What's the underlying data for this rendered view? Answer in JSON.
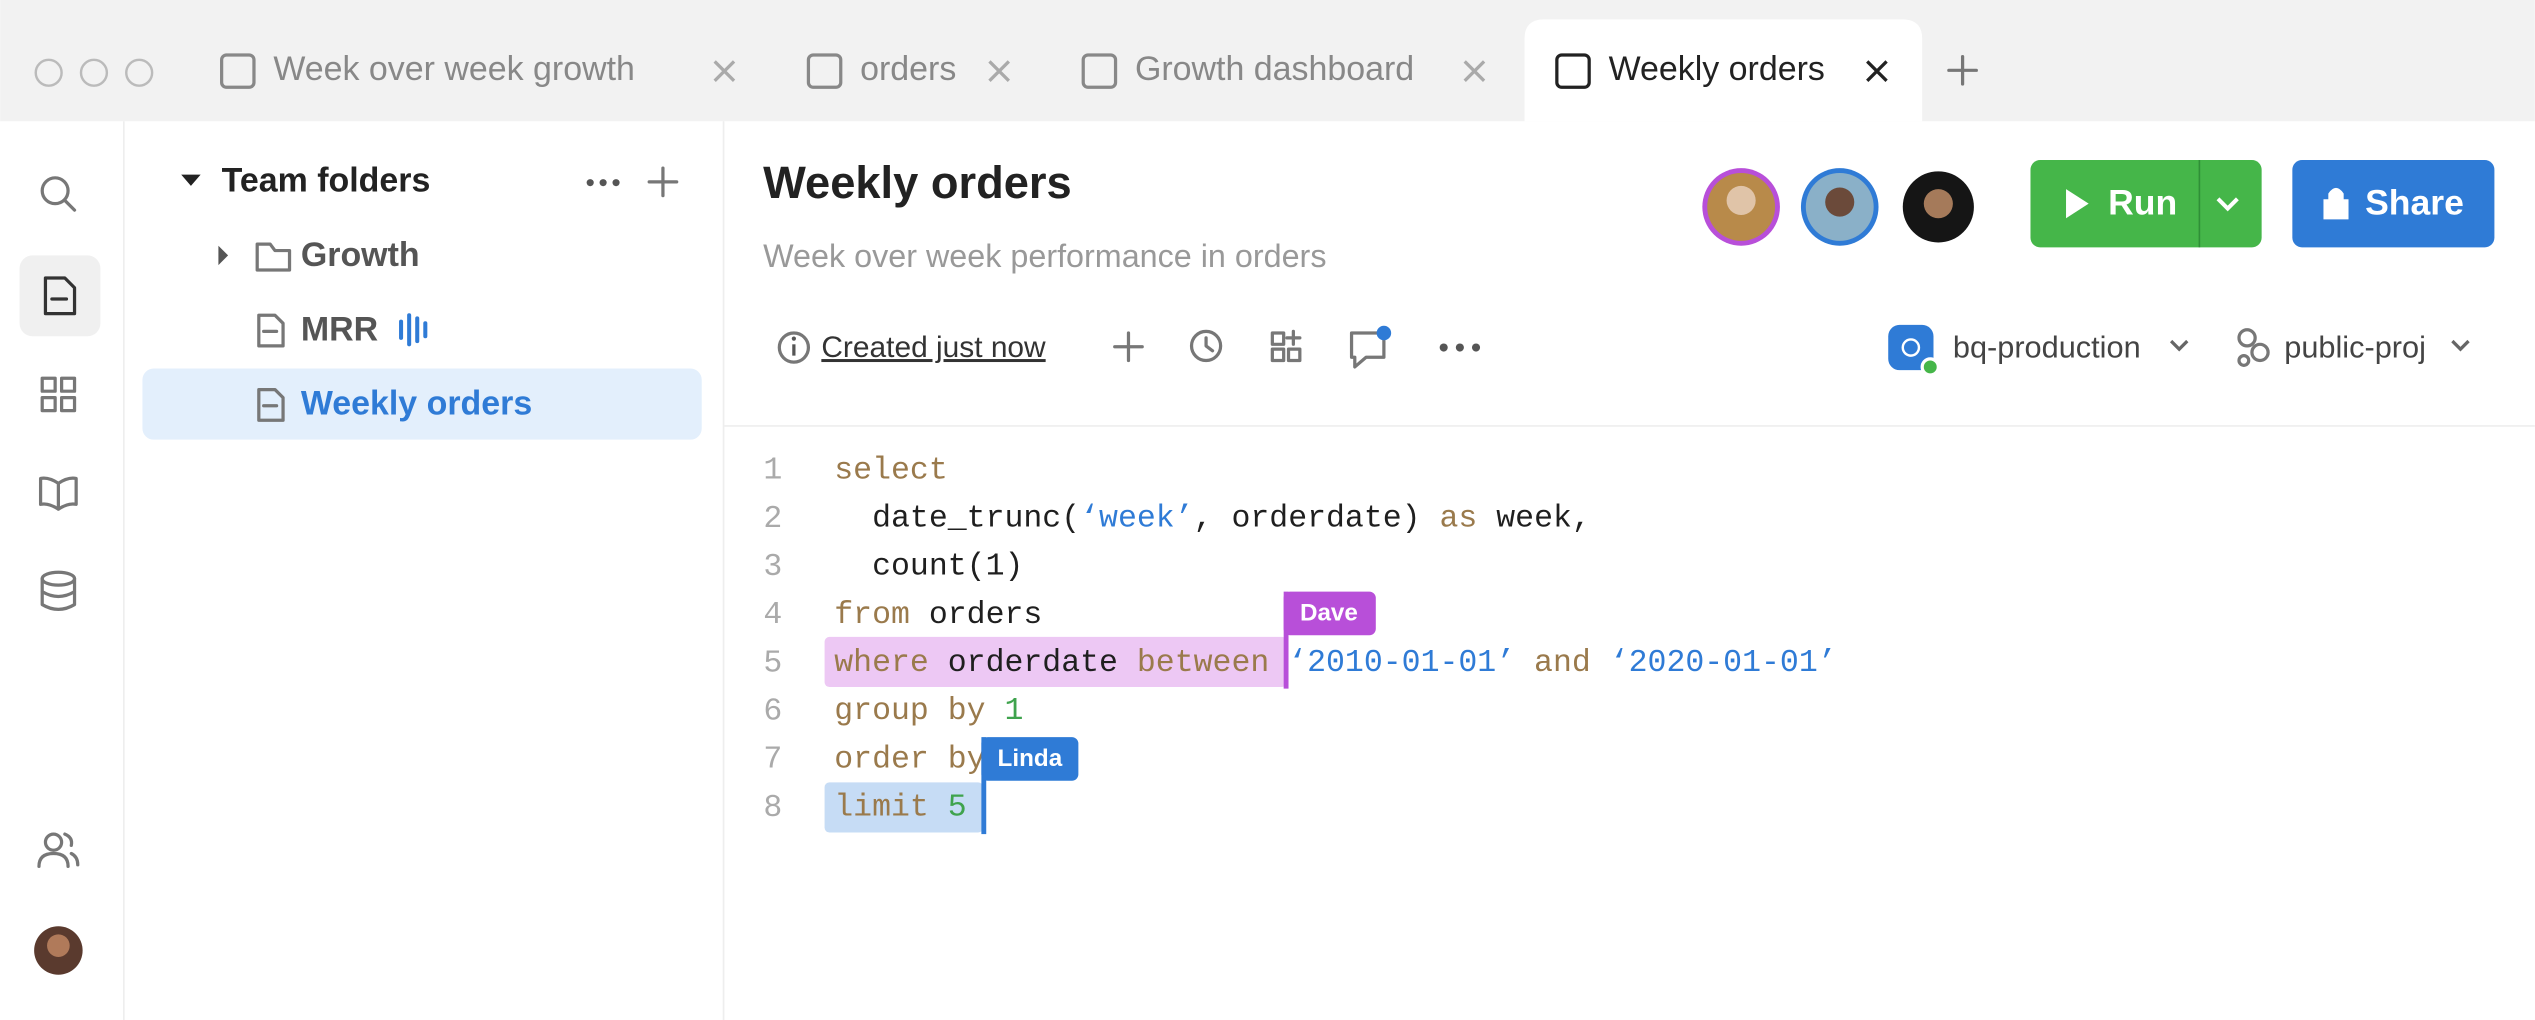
{
  "tabs": [
    {
      "label": "Week over week growth",
      "active": false
    },
    {
      "label": "orders",
      "active": false
    },
    {
      "label": "Growth dashboard",
      "active": false
    },
    {
      "label": "Weekly orders",
      "active": true
    }
  ],
  "sidebar": {
    "section": "Team folders",
    "items": [
      "Growth",
      "MRR",
      "Weekly orders"
    ]
  },
  "document": {
    "title": "Weekly orders",
    "subtitle": "Week over week performance in orders",
    "created": "Created just now",
    "run": "Run",
    "share": "Share",
    "connection": "bq-production",
    "project": "public-proj"
  },
  "editor": {
    "lines": [
      {
        "number": 1,
        "tokens": [
          {
            "text": "select",
            "color": "#9a7a4c"
          }
        ]
      },
      {
        "number": 2,
        "tokens": [
          {
            "text": "  date_trunc(",
            "color": "#1f1f1f"
          },
          {
            "text": "‘week’",
            "color": "#2f7bd6"
          },
          {
            "text": ", orderdate) ",
            "color": "#1f1f1f"
          },
          {
            "text": "as",
            "color": "#9a7a4c"
          },
          {
            "text": " week,",
            "color": "#1f1f1f"
          }
        ]
      },
      {
        "number": 3,
        "tokens": [
          {
            "text": "  count(1)",
            "color": "#1f1f1f"
          }
        ]
      },
      {
        "number": 4,
        "tokens": [
          {
            "text": "from",
            "color": "#9a7a4c"
          },
          {
            "text": " orders",
            "color": "#1f1f1f"
          }
        ]
      },
      {
        "number": 5,
        "tokens": [
          {
            "text": "where",
            "color": "#9a7a4c"
          },
          {
            "text": " orderdate ",
            "color": "#1f1f1f"
          },
          {
            "text": "between",
            "color": "#9a7a4c"
          },
          {
            "text": " ‘2010-01-01’",
            "color": "#2f7bd6"
          },
          {
            "text": " and ",
            "color": "#9a7a4c"
          },
          {
            "text": "‘2020-01-01’",
            "color": "#2f7bd6"
          }
        ]
      },
      {
        "number": 6,
        "tokens": [
          {
            "text": "group by",
            "color": "#9a7a4c"
          },
          {
            "text": " 1",
            "color": "#3fa34d"
          }
        ]
      },
      {
        "number": 7,
        "tokens": [
          {
            "text": "order by",
            "color": "#9a7a4c"
          }
        ]
      },
      {
        "number": 8,
        "tokens": [
          {
            "text": "limit",
            "color": "#9a7a4c"
          },
          {
            "text": " 5",
            "color": "#3fa34d"
          }
        ]
      }
    ],
    "cursors": [
      {
        "name": "Dave",
        "color": "#b84fd9",
        "highlight": "#edc8f4"
      },
      {
        "name": "Linda",
        "color": "#2f7bd6",
        "highlight": "#c6dcf5"
      }
    ]
  }
}
